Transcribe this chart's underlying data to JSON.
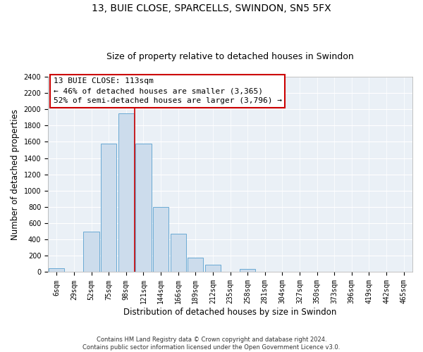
{
  "title": "13, BUIE CLOSE, SPARCELLS, SWINDON, SN5 5FX",
  "subtitle": "Size of property relative to detached houses in Swindon",
  "xlabel": "Distribution of detached houses by size in Swindon",
  "ylabel": "Number of detached properties",
  "bar_color": "#ccdcec",
  "bar_edge_color": "#6aaad4",
  "bin_labels": [
    "6sqm",
    "29sqm",
    "52sqm",
    "75sqm",
    "98sqm",
    "121sqm",
    "144sqm",
    "166sqm",
    "189sqm",
    "212sqm",
    "235sqm",
    "258sqm",
    "281sqm",
    "304sqm",
    "327sqm",
    "350sqm",
    "373sqm",
    "396sqm",
    "419sqm",
    "442sqm",
    "465sqm"
  ],
  "bar_heights": [
    50,
    0,
    500,
    1575,
    1950,
    1575,
    800,
    470,
    175,
    90,
    0,
    35,
    0,
    0,
    0,
    0,
    0,
    0,
    0,
    0,
    0
  ],
  "ylim": [
    0,
    2400
  ],
  "yticks": [
    0,
    200,
    400,
    600,
    800,
    1000,
    1200,
    1400,
    1600,
    1800,
    2000,
    2200,
    2400
  ],
  "vline_x": 4.5,
  "vline_color": "#cc0000",
  "annotation_title": "13 BUIE CLOSE: 113sqm",
  "annotation_line1": "← 46% of detached houses are smaller (3,365)",
  "annotation_line2": "52% of semi-detached houses are larger (3,796) →",
  "annotation_box_color": "#ffffff",
  "annotation_box_edge": "#cc0000",
  "footer1": "Contains HM Land Registry data © Crown copyright and database right 2024.",
  "footer2": "Contains public sector information licensed under the Open Government Licence v3.0.",
  "background_color": "#eaf0f6",
  "plot_background": "#ffffff",
  "title_fontsize": 10,
  "subtitle_fontsize": 9,
  "tick_fontsize": 7,
  "label_fontsize": 8.5
}
